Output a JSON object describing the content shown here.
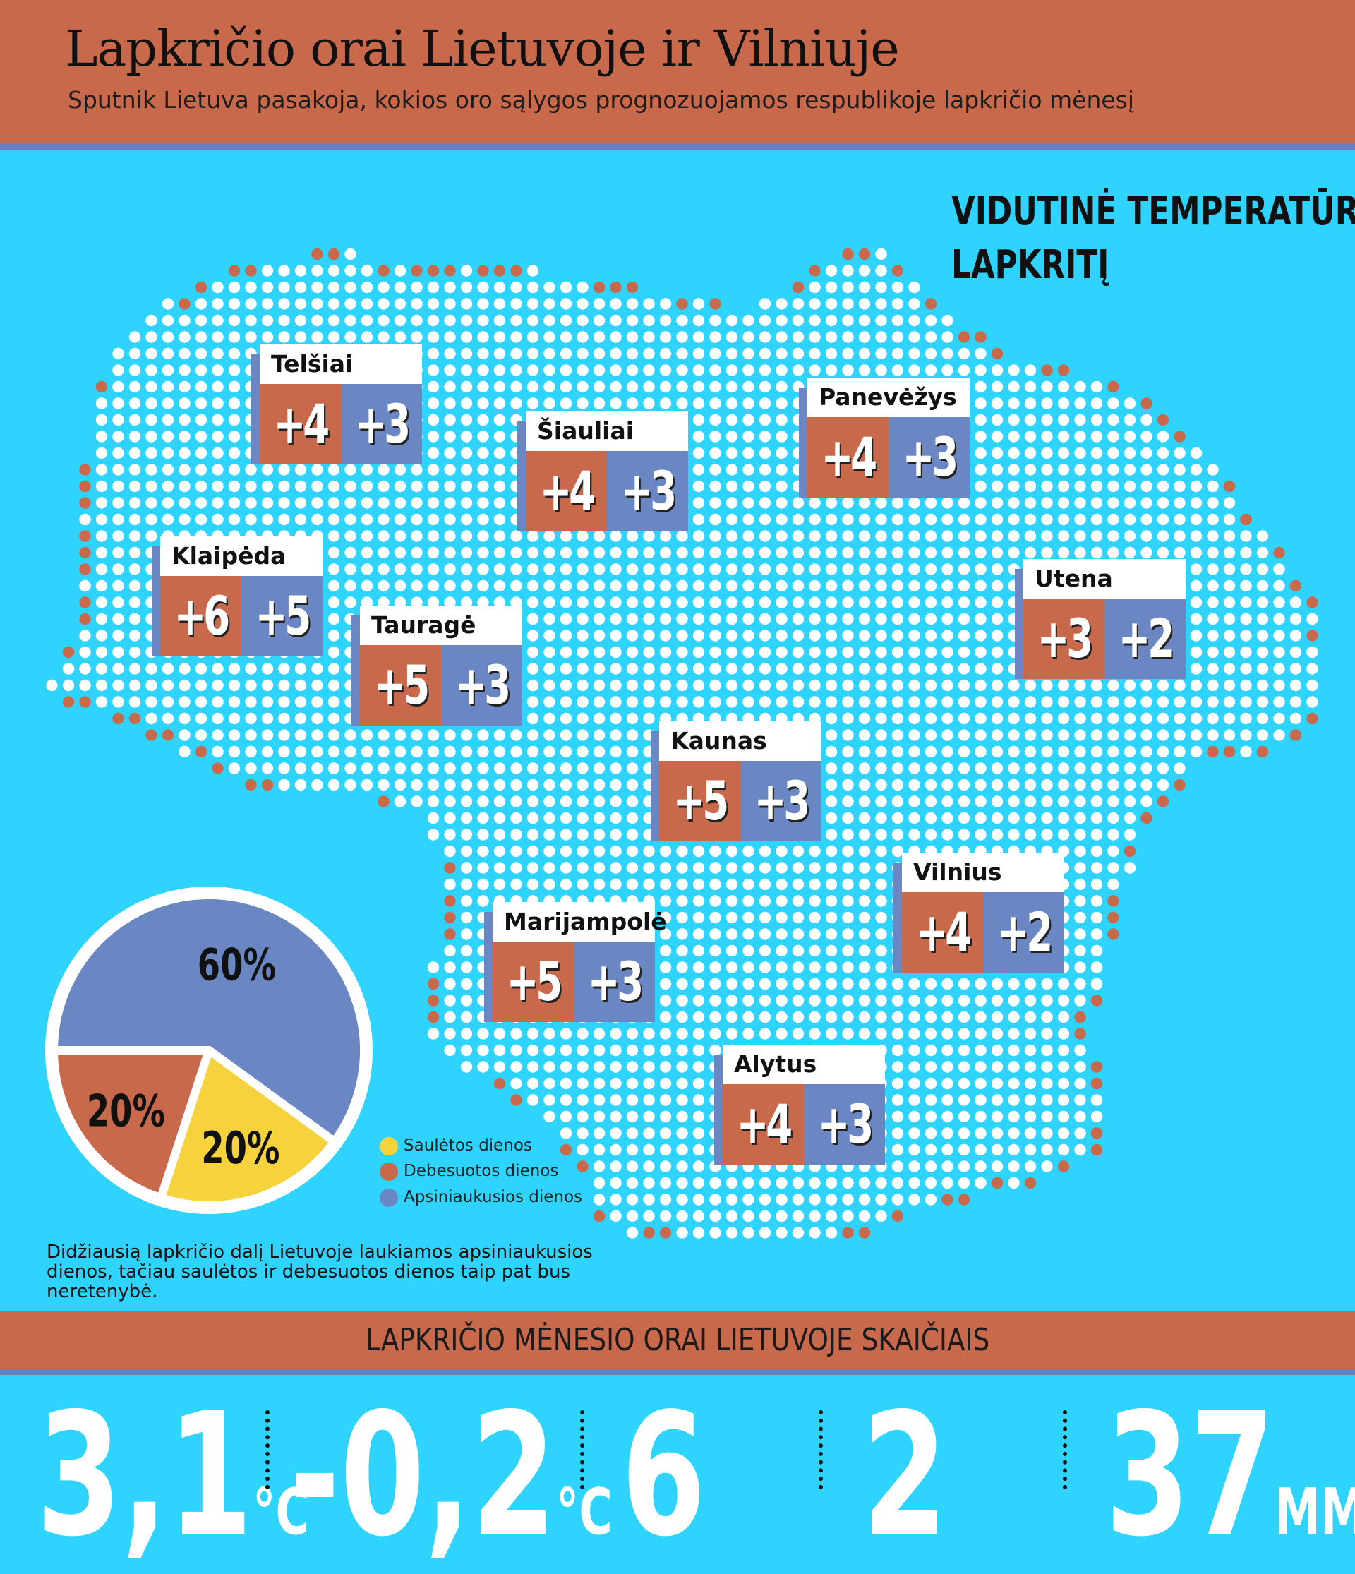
{
  "header": {
    "title": "Lapkričio orai Lietuvoje ir Vilniuje",
    "subtitle": "Sputnik Lietuva pasakoja, kokios oro sąlygos prognozuojamos respublikoje lapkričio mėnesį"
  },
  "map_heading": {
    "line1": "VIDUTINĖ TEMPERATŪRA",
    "line2": "LAPKRITĮ"
  },
  "cities": [
    {
      "name": "Telšiai",
      "day": "+4",
      "night": "+3"
    },
    {
      "name": "Šiauliai",
      "day": "+4",
      "night": "+3"
    },
    {
      "name": "Panevėžys",
      "day": "+4",
      "night": "+3"
    },
    {
      "name": "Klaipėda",
      "day": "+6",
      "night": "+5"
    },
    {
      "name": "Tauragė",
      "day": "+5",
      "night": "+3"
    },
    {
      "name": "Utena",
      "day": "+3",
      "night": "+2"
    },
    {
      "name": "Kaunas",
      "day": "+5",
      "night": "+3"
    },
    {
      "name": "Vilnius",
      "day": "+4",
      "night": "+2"
    },
    {
      "name": "Marijampolė",
      "day": "+5",
      "night": "+3"
    },
    {
      "name": "Alytus",
      "day": "+4",
      "night": "+3"
    }
  ],
  "chart_data": {
    "type": "pie",
    "slices": [
      {
        "label": "Apsiniaukusios dienos",
        "value": 60,
        "display": "60%",
        "color": "#6a87c3"
      },
      {
        "label": "Saulėtos dienos",
        "value": 20,
        "display": "20%",
        "color": "#f6d23c"
      },
      {
        "label": "Debesuotos dienos",
        "value": 20,
        "display": "20%",
        "color": "#c8694c"
      }
    ],
    "legend": [
      "Saulėtos dienos",
      "Debesuotos dienos",
      "Apsiniaukusios dienos"
    ]
  },
  "colors": {
    "background": "#2ed3fe",
    "accent": "#c8694c",
    "secondary": "#6a87c3",
    "sun": "#f6d23c"
  },
  "note": {
    "line1": "Didžiausią lapkričio dalį Lietuvoje laukiamos apsiniaukusios",
    "line2": "dienos, tačiau saulėtos ir debesuotos dienos taip pat bus neretenybė."
  },
  "band_title": "LAPKRIČIO MĖNESIO ORAI LIETUVOJE SKAIČIAIS",
  "stats": [
    {
      "value": "3,1",
      "unit": "°C"
    },
    {
      "value": "-0,2",
      "unit": "°C"
    },
    {
      "value": "6",
      "unit": ""
    },
    {
      "value": "2",
      "unit": ""
    },
    {
      "value": "37",
      "unit": "MM"
    }
  ]
}
